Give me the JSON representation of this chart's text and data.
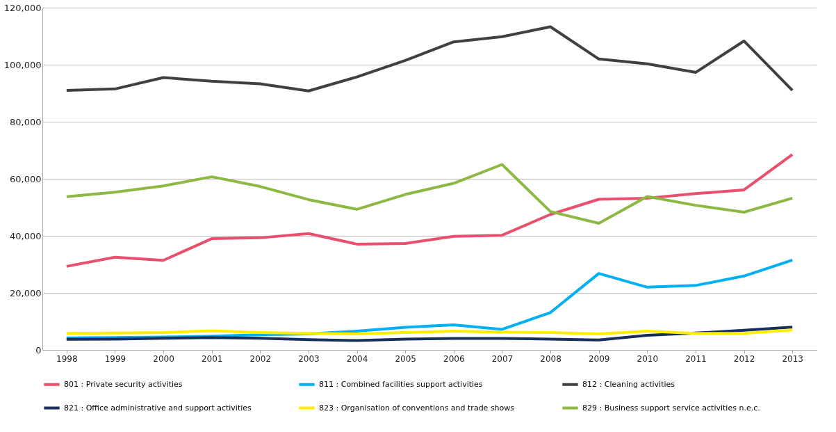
{
  "chart_data": {
    "type": "line",
    "categories": [
      "1998",
      "1999",
      "2000",
      "2001",
      "2002",
      "2003",
      "2004",
      "2005",
      "2006",
      "2007",
      "2008",
      "2009",
      "2010",
      "2011",
      "2012",
      "2013"
    ],
    "series": [
      {
        "name": "801 : Private security activities",
        "color": "#e8506e",
        "values": [
          29300,
          32500,
          31400,
          39000,
          39300,
          40800,
          37100,
          37300,
          39800,
          40200,
          47500,
          52800,
          53200,
          54800,
          56100,
          68500
        ]
      },
      {
        "name": "811 : Combined facilities support activities",
        "color": "#00b0f0",
        "values": [
          4200,
          4300,
          4500,
          4800,
          5300,
          5600,
          6600,
          7900,
          8800,
          7200,
          13100,
          26800,
          22000,
          22600,
          25900,
          31500
        ]
      },
      {
        "name": "812 : Cleaning activities",
        "color": "#404040",
        "values": [
          91000,
          91500,
          95500,
          94200,
          93300,
          90800,
          95700,
          101500,
          108000,
          109800,
          113300,
          102000,
          100300,
          97300,
          108300,
          91000
        ]
      },
      {
        "name": "821 : Office administrative and support activities",
        "color": "#17305a",
        "values": [
          3700,
          3800,
          4100,
          4300,
          4100,
          3600,
          3300,
          3800,
          4000,
          4000,
          3800,
          3500,
          5100,
          5900,
          6900,
          8000
        ]
      },
      {
        "name": "823 : Organisation of conventions and trade shows",
        "color": "#ffed00",
        "values": [
          5800,
          5900,
          6100,
          6700,
          6100,
          5800,
          5600,
          6100,
          6600,
          6200,
          6100,
          5600,
          6600,
          5800,
          5800,
          7000
        ]
      },
      {
        "name": "829 : Business support service activities n.e.c.",
        "color": "#8db843",
        "values": [
          53700,
          55300,
          57500,
          60700,
          57300,
          52700,
          49300,
          54500,
          58400,
          65000,
          48500,
          44400,
          53800,
          50700,
          48300,
          53200
        ]
      }
    ],
    "ylim": [
      0,
      120000
    ],
    "yticks": [
      {
        "value": 0,
        "label": "0"
      },
      {
        "value": 20000,
        "label": "20,000"
      },
      {
        "value": 40000,
        "label": "40,000"
      },
      {
        "value": 60000,
        "label": "60,000"
      },
      {
        "value": 80000,
        "label": "80,000"
      },
      {
        "value": 100000,
        "label": "100,000"
      },
      {
        "value": 120000,
        "label": "120,000"
      }
    ],
    "grid": "y",
    "legend": "bottom",
    "marker": "none",
    "line_style": "solid"
  }
}
